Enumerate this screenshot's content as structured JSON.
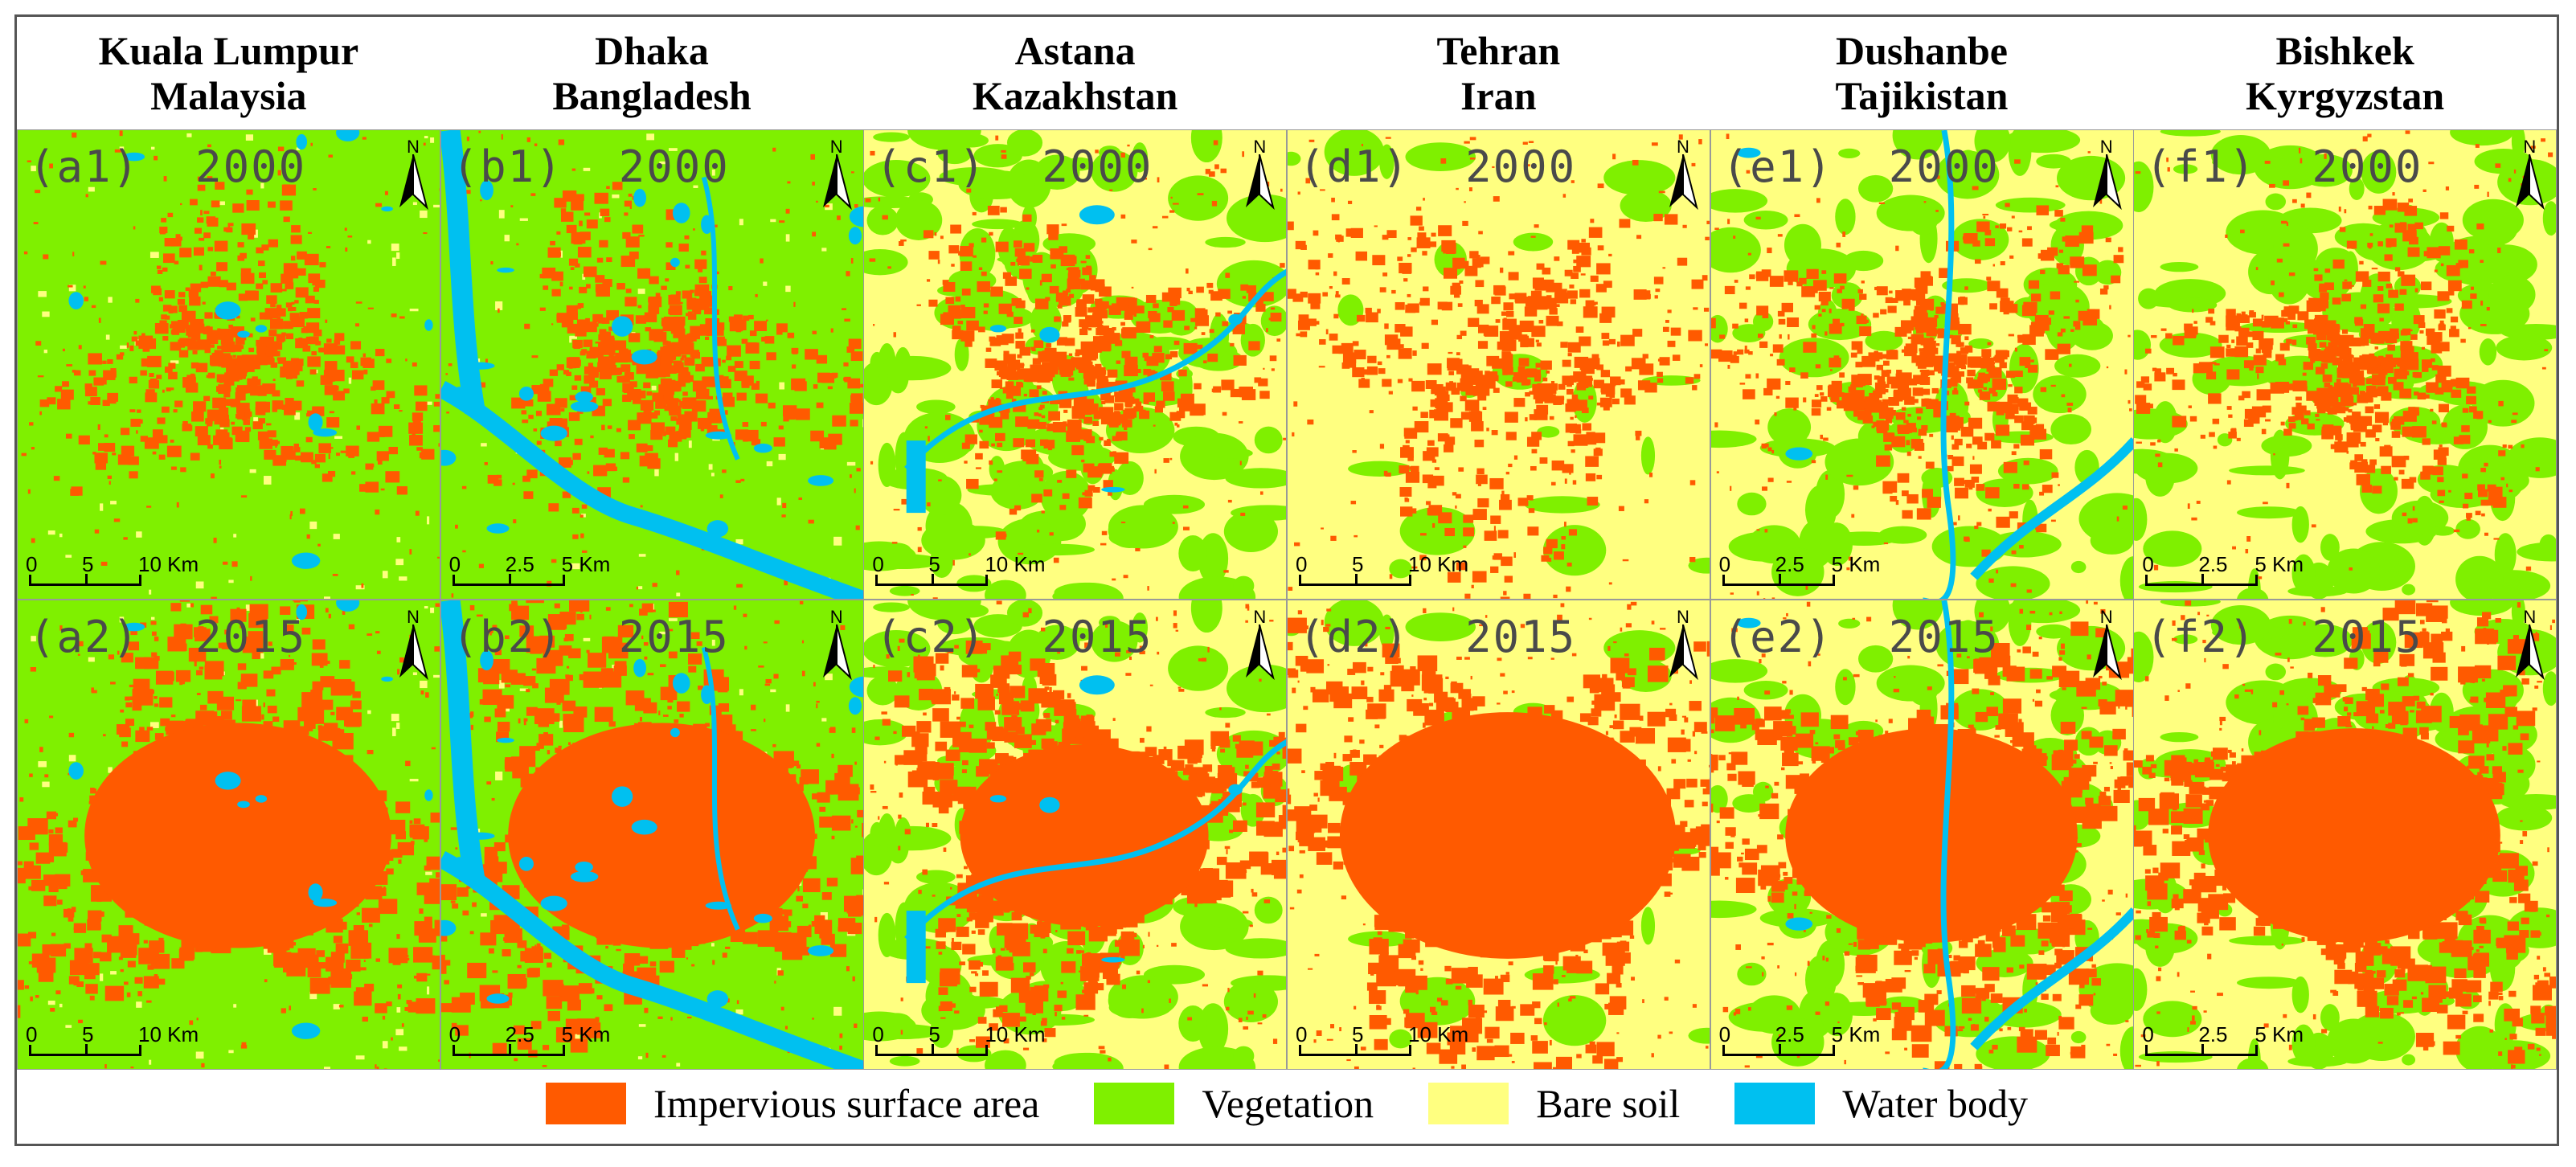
{
  "cities": [
    {
      "line1": "Kuala Lumpur",
      "line2": "Malaysia",
      "top_label": "(a1)  2000",
      "bottom_label": "(a2)  2015",
      "scale_ticks": [
        "0",
        "5",
        "10 Km"
      ]
    },
    {
      "line1": "Dhaka",
      "line2": "Bangladesh",
      "top_label": "(b1)  2000",
      "bottom_label": "(b2)  2015",
      "scale_ticks": [
        "0",
        "2.5",
        "5 Km"
      ]
    },
    {
      "line1": "Astana",
      "line2": "Kazakhstan",
      "top_label": "(c1)  2000",
      "bottom_label": "(c2)  2015",
      "scale_ticks": [
        "0",
        "5",
        "10 Km"
      ]
    },
    {
      "line1": "Tehran",
      "line2": "Iran",
      "top_label": "(d1)  2000",
      "bottom_label": "(d2)  2015",
      "scale_ticks": [
        "0",
        "5",
        "10 Km"
      ]
    },
    {
      "line1": "Dushanbe",
      "line2": "Tajikistan",
      "top_label": "(e1)  2000",
      "bottom_label": "(e2)  2015",
      "scale_ticks": [
        "0",
        "2.5",
        "5 Km"
      ]
    },
    {
      "line1": "Bishkek",
      "line2": "Kyrgyzstan",
      "top_label": "(f1)  2000",
      "bottom_label": "(f2)  2015",
      "scale_ticks": [
        "0",
        "2.5",
        "5 Km"
      ]
    }
  ],
  "north_letter": "N",
  "legend": [
    {
      "label": "Impervious surface area",
      "color": "#ff5a00"
    },
    {
      "label": "Vegetation",
      "color": "#7ff000"
    },
    {
      "label": "Bare soil",
      "color": "#ffff80"
    },
    {
      "label": "Water body",
      "color": "#00c0f0"
    }
  ]
}
